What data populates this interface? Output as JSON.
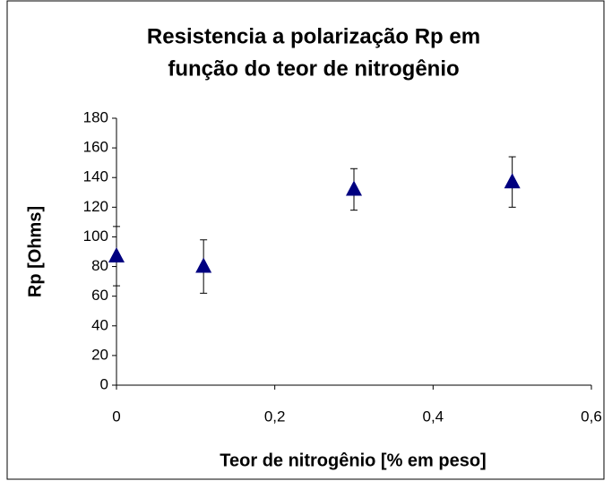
{
  "chart_data": {
    "type": "scatter",
    "title": [
      "Resistencia a polarização Rp em",
      "função do teor de nitrogênio"
    ],
    "xlabel": "Teor de nitrogênio [% em peso]",
    "ylabel": "Rp [Ohms]",
    "x": [
      0,
      0.11,
      0.3,
      0.5
    ],
    "values": [
      87,
      80,
      132,
      137
    ],
    "errors": [
      20,
      18,
      14,
      17
    ],
    "color": "#000080",
    "xlim": [
      0,
      0.6
    ],
    "xticks": [
      0,
      {
        "value": 0.2,
        "label": "0,2"
      },
      {
        "value": 0.4,
        "label": "0,4"
      },
      {
        "value": 0.6,
        "label": "0,6"
      }
    ],
    "ylim": [
      0,
      180
    ],
    "yticks": [
      0,
      20,
      40,
      60,
      80,
      100,
      120,
      140,
      160,
      180
    ],
    "grid": false
  }
}
